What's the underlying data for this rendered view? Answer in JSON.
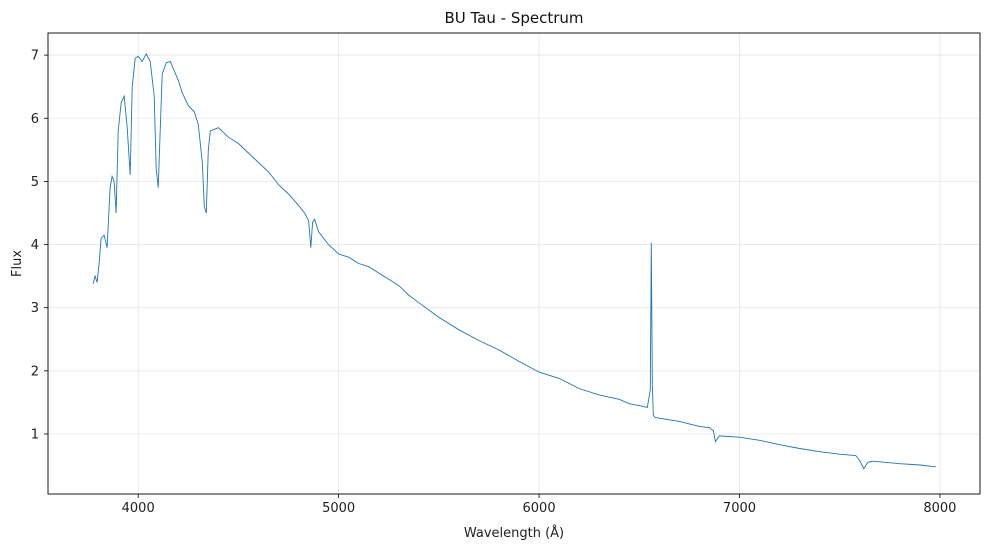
{
  "chart_data": {
    "type": "line",
    "title": "BU Tau - Spectrum",
    "xlabel": "Wavelength (Å)",
    "ylabel": "Flux",
    "xlim": [
      3550,
      8200
    ],
    "ylim": [
      0.05,
      7.35
    ],
    "grid": true,
    "xticks": [
      4000,
      5000,
      6000,
      7000,
      8000
    ],
    "yticks": [
      1,
      2,
      3,
      4,
      5,
      6,
      7
    ],
    "colors": {
      "line": "#1f77b4",
      "grid": "#e6e6e6",
      "axis": "#000000"
    },
    "series": [
      {
        "x": [
          3775,
          3785,
          3795,
          3805,
          3815,
          3830,
          3845,
          3860,
          3870,
          3880,
          3890,
          3900,
          3915,
          3930,
          3945,
          3960,
          3970,
          3985,
          4000,
          4020,
          4040,
          4060,
          4080,
          4090,
          4100,
          4110,
          4120,
          4140,
          4160,
          4180,
          4200,
          4220,
          4250,
          4280,
          4300,
          4320,
          4330,
          4340,
          4350,
          4360,
          4400,
          4450,
          4500,
          4550,
          4600,
          4650,
          4700,
          4750,
          4800,
          4830,
          4850,
          4861,
          4870,
          4880,
          4900,
          4950,
          5000,
          5050,
          5100,
          5150,
          5200,
          5250,
          5300,
          5350,
          5400,
          5500,
          5600,
          5700,
          5800,
          5900,
          6000,
          6100,
          6200,
          6300,
          6400,
          6450,
          6500,
          6540,
          6555,
          6560,
          6565,
          6570,
          6580,
          6600,
          6700,
          6800,
          6850,
          6870,
          6880,
          6900,
          7000,
          7100,
          7200,
          7300,
          7400,
          7500,
          7580,
          7600,
          7620,
          7640,
          7660,
          7700,
          7800,
          7900,
          7980
        ],
        "values": [
          3.38,
          3.5,
          3.4,
          3.7,
          4.1,
          4.15,
          3.95,
          4.9,
          5.08,
          5.0,
          4.5,
          5.8,
          6.25,
          6.35,
          5.85,
          5.1,
          6.5,
          6.95,
          6.98,
          6.9,
          7.02,
          6.9,
          6.35,
          5.2,
          4.9,
          5.8,
          6.7,
          6.88,
          6.9,
          6.75,
          6.6,
          6.4,
          6.2,
          6.1,
          5.9,
          5.3,
          4.6,
          4.5,
          5.5,
          5.8,
          5.85,
          5.7,
          5.6,
          5.45,
          5.3,
          5.15,
          4.95,
          4.8,
          4.62,
          4.5,
          4.38,
          3.95,
          4.35,
          4.4,
          4.2,
          4.0,
          3.85,
          3.8,
          3.7,
          3.65,
          3.55,
          3.45,
          3.35,
          3.2,
          3.08,
          2.85,
          2.65,
          2.48,
          2.33,
          2.15,
          1.98,
          1.88,
          1.72,
          1.62,
          1.55,
          1.48,
          1.45,
          1.42,
          1.7,
          4.03,
          1.8,
          1.3,
          1.26,
          1.25,
          1.2,
          1.12,
          1.1,
          1.05,
          0.88,
          0.97,
          0.95,
          0.9,
          0.83,
          0.77,
          0.72,
          0.68,
          0.66,
          0.58,
          0.45,
          0.55,
          0.57,
          0.56,
          0.53,
          0.51,
          0.48
        ]
      }
    ]
  }
}
